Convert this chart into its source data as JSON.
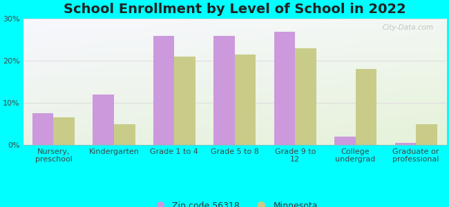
{
  "title": "School Enrollment by Level of School in 2022",
  "categories": [
    "Nursery,\npreschool",
    "Kindergarten",
    "Grade 1 to 4",
    "Grade 5 to 8",
    "Grade 9 to\n12",
    "College\nundergrad",
    "Graduate or\nprofessional"
  ],
  "zipcode_values": [
    7.5,
    12.0,
    26.0,
    26.0,
    27.0,
    2.0,
    0.5
  ],
  "minnesota_values": [
    6.5,
    5.0,
    21.0,
    21.5,
    23.0,
    18.0,
    5.0
  ],
  "zipcode_color": "#cc99dd",
  "minnesota_color": "#c8cc88",
  "figure_bg_color": "#00ffff",
  "plot_bg_color": "#e8f8ee",
  "ylim": [
    0,
    30
  ],
  "yticks": [
    0,
    10,
    20,
    30
  ],
  "ytick_labels": [
    "0%",
    "10%",
    "20%",
    "30%"
  ],
  "legend_label_zip": "Zip code 56318",
  "legend_label_mn": "Minnesota",
  "bar_width": 0.35,
  "title_fontsize": 14,
  "tick_fontsize": 8,
  "legend_fontsize": 9,
  "watermark": "City-Data.com"
}
